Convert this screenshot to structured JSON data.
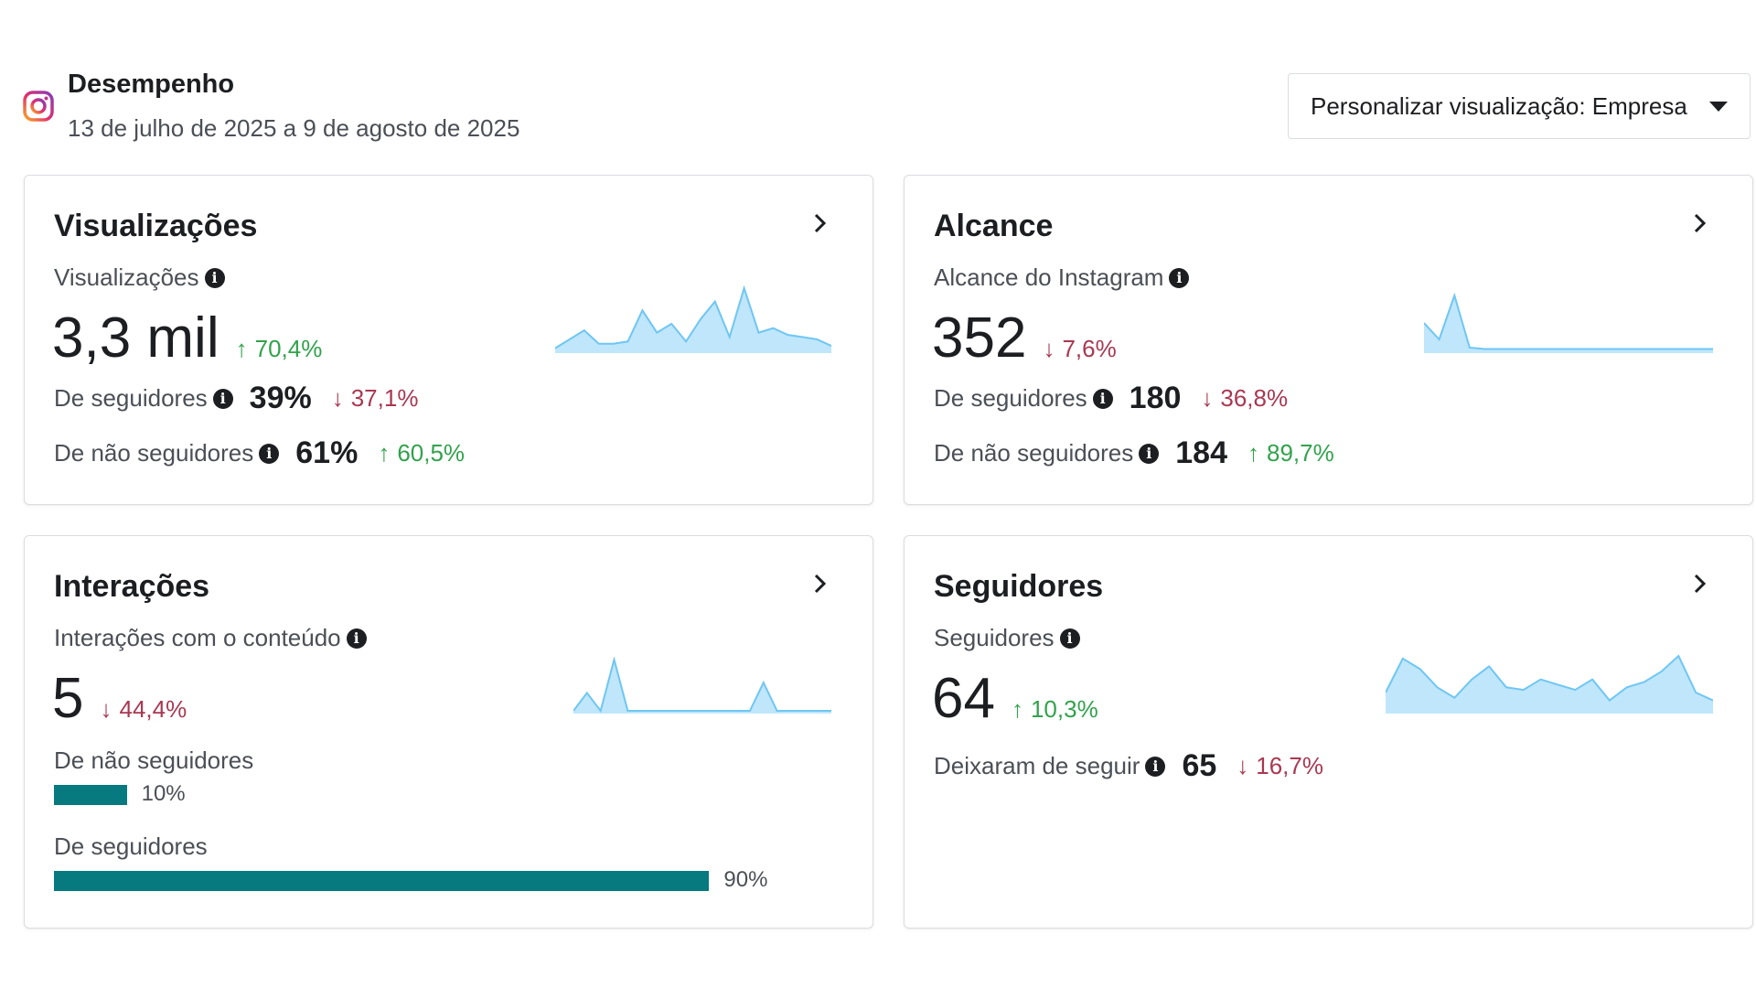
{
  "header": {
    "title": "Desempenho",
    "date_range": "13 de julho de 2025 a 9 de agosto de 2025",
    "view_select_label": "Personalizar visualização: Empresa"
  },
  "colors": {
    "up": "#31a24c",
    "down": "#a83852",
    "spark_fill": "#bfe6fb",
    "spark_line": "#6fc6f3",
    "bar": "#067a7f"
  },
  "cards": {
    "views": {
      "title": "Visualizações",
      "subtitle": "Visualizações",
      "value": "3,3 mil",
      "delta": "70,4%",
      "delta_dir": "up",
      "rows": [
        {
          "label": "De seguidores",
          "value": "39%",
          "delta": "37,1%",
          "dir": "down"
        },
        {
          "label": "De não seguidores",
          "value": "61%",
          "delta": "60,5%",
          "dir": "up"
        }
      ],
      "spark": [
        1,
        5,
        9,
        3,
        3,
        4,
        18,
        8,
        12,
        4,
        14,
        22,
        6,
        28,
        8,
        10,
        7,
        6,
        5,
        2
      ]
    },
    "reach": {
      "title": "Alcance",
      "subtitle": "Alcance do Instagram",
      "value": "352",
      "delta": "7,6%",
      "delta_dir": "down",
      "rows": [
        {
          "label": "De seguidores",
          "value": "180",
          "delta": "36,8%",
          "dir": "down"
        },
        {
          "label": "De não seguidores",
          "value": "184",
          "delta": "89,7%",
          "dir": "up"
        }
      ],
      "spark": [
        20,
        8,
        40,
        2,
        1,
        1,
        1,
        1,
        1,
        1,
        1,
        1,
        1,
        1,
        1,
        1,
        1,
        1,
        1,
        1
      ]
    },
    "interactions": {
      "title": "Interações",
      "subtitle": "Interações com o conteúdo",
      "value": "5",
      "delta": "44,4%",
      "delta_dir": "down",
      "bars": [
        {
          "label": "De não seguidores",
          "pct_text": "10%",
          "pct": 10
        },
        {
          "label": "De seguidores",
          "pct_text": "90%",
          "pct": 90
        }
      ],
      "spark": [
        0,
        14,
        0,
        40,
        0,
        0,
        0,
        0,
        0,
        0,
        0,
        0,
        0,
        0,
        22,
        0,
        0,
        0,
        0,
        0
      ]
    },
    "followers": {
      "title": "Seguidores",
      "subtitle": "Seguidores",
      "value": "64",
      "delta": "10,3%",
      "delta_dir": "up",
      "rows": [
        {
          "label": "Deixaram de seguir",
          "value": "65",
          "delta": "16,7%",
          "dir": "down"
        }
      ],
      "spark": [
        14,
        40,
        32,
        18,
        10,
        24,
        34,
        18,
        16,
        24,
        20,
        16,
        24,
        8,
        18,
        22,
        30,
        42,
        14,
        8
      ]
    }
  }
}
